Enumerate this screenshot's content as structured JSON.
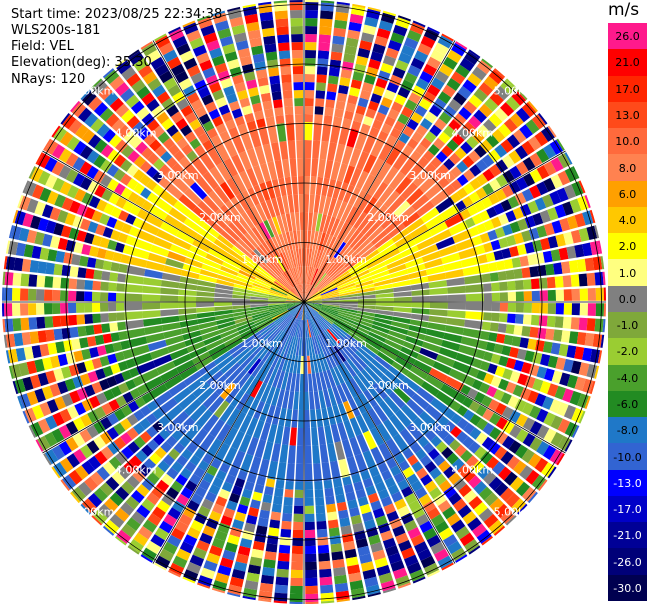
{
  "header": {
    "start_time": "Start time: 2023/08/25 22:34:38",
    "station": "WLS200s-181",
    "field": "Field: VEL",
    "elevation": "Elevation(deg): 35.30",
    "nrays": "NRays: 120"
  },
  "colorbar": {
    "unit": "m/s",
    "levels": [
      {
        "label": "26.0",
        "color": "#ff1a8c",
        "text_color": "#000000"
      },
      {
        "label": "21.0",
        "color": "#ff0000",
        "text_color": "#000000"
      },
      {
        "label": "17.0",
        "color": "#ff2600",
        "text_color": "#000000"
      },
      {
        "label": "13.0",
        "color": "#ff4a1a",
        "text_color": "#000000"
      },
      {
        "label": "10.0",
        "color": "#ff6a3c",
        "text_color": "#000000"
      },
      {
        "label": "8.0",
        "color": "#ff8250",
        "text_color": "#000000"
      },
      {
        "label": "6.0",
        "color": "#ffa000",
        "text_color": "#000000"
      },
      {
        "label": "4.0",
        "color": "#ffc800",
        "text_color": "#000000"
      },
      {
        "label": "2.0",
        "color": "#ffff00",
        "text_color": "#000000"
      },
      {
        "label": "1.0",
        "color": "#ffff80",
        "text_color": "#000000"
      },
      {
        "label": "0.0",
        "color": "#808080",
        "text_color": "#000000"
      },
      {
        "label": "-1.0",
        "color": "#7fa83a",
        "text_color": "#000000"
      },
      {
        "label": "-2.0",
        "color": "#9acd32",
        "text_color": "#000000"
      },
      {
        "label": "-4.0",
        "color": "#4aa02c",
        "text_color": "#000000"
      },
      {
        "label": "-6.0",
        "color": "#228b22",
        "text_color": "#000000"
      },
      {
        "label": "-8.0",
        "color": "#1f78c8",
        "text_color": "#000000"
      },
      {
        "label": "-10.0",
        "color": "#3264d2",
        "text_color": "#000000"
      },
      {
        "label": "-13.0",
        "color": "#0000ff",
        "text_color": "#ffffff"
      },
      {
        "label": "-17.0",
        "color": "#0000c8",
        "text_color": "#ffffff"
      },
      {
        "label": "-21.0",
        "color": "#000096",
        "text_color": "#ffffff"
      },
      {
        "label": "-26.0",
        "color": "#000078",
        "text_color": "#ffffff"
      },
      {
        "label": "-30.0",
        "color": "#000050",
        "text_color": "#ffffff"
      }
    ]
  },
  "ppi": {
    "range_labels": [
      "1.00km",
      "2.00km",
      "3.00km",
      "4.00km",
      "5.00km"
    ]
  }
}
